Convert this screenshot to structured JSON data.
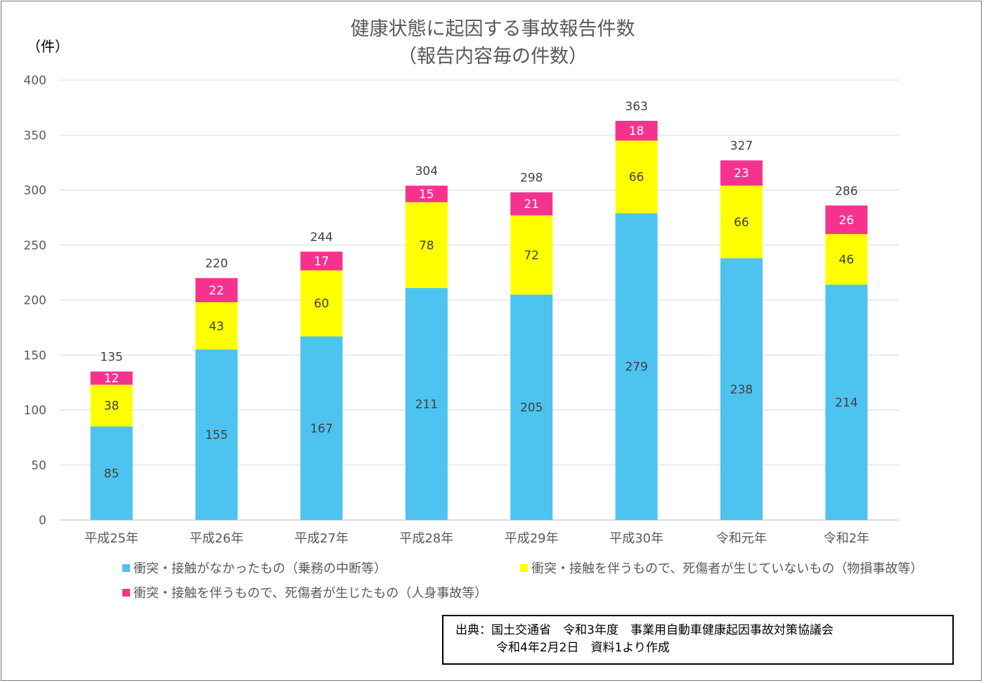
{
  "chart_data": {
    "type": "bar",
    "stacked": true,
    "title": [
      "健康状態に起因する事故報告件数",
      "（報告内容毎の件数）"
    ],
    "unit_label": "（件）",
    "ylim": [
      0,
      400
    ],
    "yticks": [
      0,
      50,
      100,
      150,
      200,
      250,
      300,
      350,
      400
    ],
    "grid": true,
    "legend_position": "bottom",
    "categories": [
      "平成25年",
      "平成26年",
      "平成27年",
      "平成28年",
      "平成29年",
      "平成30年",
      "令和元年",
      "令和2年"
    ],
    "series": [
      {
        "name": "衝突・接触がなかったもの（乗務の中断等）",
        "color": "#4dc3ef",
        "values": [
          85,
          155,
          167,
          211,
          205,
          279,
          238,
          214
        ]
      },
      {
        "name": "衝突・接触を伴うもので、死傷者が生じていないもの（物損事故等）",
        "color": "#ffff00",
        "values": [
          38,
          43,
          60,
          78,
          72,
          66,
          66,
          46
        ]
      },
      {
        "name": "衝突・接触を伴うもので、死傷者が生じたもの（人身事故等）",
        "color": "#f5338f",
        "values": [
          12,
          22,
          17,
          15,
          21,
          18,
          23,
          26
        ]
      }
    ],
    "totals": [
      135,
      220,
      244,
      304,
      298,
      363,
      327,
      286
    ]
  },
  "source": {
    "line1": "出典：国土交通省　令和3年度　事業用自動車健康起因事故対策協議会",
    "line2": "令和4年2月2日　資料1より作成"
  }
}
